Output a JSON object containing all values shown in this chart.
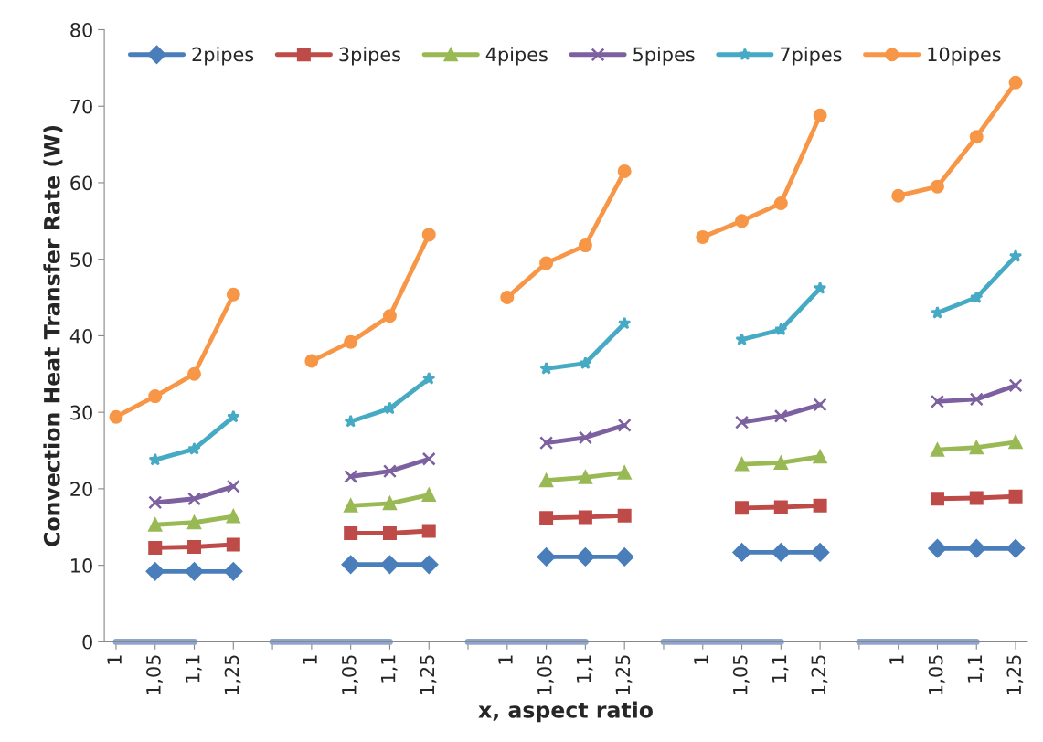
{
  "chart_data": {
    "type": "line",
    "xlabel": "x, aspect ratio",
    "ylabel": "Convection Heat Transfer Rate (W)",
    "categories": [
      "1",
      "1,05",
      "1,1",
      "1,25",
      null,
      "1",
      "1,05",
      "1,1",
      "1,25",
      null,
      "1",
      "1,05",
      "1,1",
      "1,25",
      null,
      "1",
      "1,05",
      "1,1",
      "1,25",
      null,
      "1",
      "1,05",
      "1,1",
      "1,25"
    ],
    "ylim": [
      0,
      80
    ],
    "yticks": [
      0,
      10,
      20,
      30,
      40,
      50,
      60,
      70,
      80
    ],
    "grid": false,
    "legend": "top",
    "line_style": "solid",
    "series": [
      {
        "name": "2pipes",
        "color": "#4a7ebb",
        "marker": "diamond",
        "values": [
          null,
          9.2,
          9.2,
          9.2,
          null,
          null,
          10.1,
          10.1,
          10.1,
          null,
          null,
          11.1,
          11.1,
          11.1,
          null,
          null,
          11.7,
          11.7,
          11.7,
          null,
          null,
          12.2,
          12.2,
          12.2
        ]
      },
      {
        "name": "3pipes",
        "color": "#be4b48",
        "marker": "square",
        "values": [
          null,
          12.3,
          12.4,
          12.7,
          null,
          null,
          14.2,
          14.2,
          14.5,
          null,
          null,
          16.2,
          16.3,
          16.5,
          null,
          null,
          17.5,
          17.6,
          17.8,
          null,
          null,
          18.7,
          18.8,
          19.0
        ]
      },
      {
        "name": "4pipes",
        "color": "#98b954",
        "marker": "triangle",
        "values": [
          null,
          15.3,
          15.6,
          16.4,
          null,
          null,
          17.8,
          18.1,
          19.2,
          null,
          null,
          21.1,
          21.5,
          22.1,
          null,
          null,
          23.2,
          23.4,
          24.2,
          null,
          null,
          25.1,
          25.4,
          26.1
        ]
      },
      {
        "name": "5pipes",
        "color": "#7d60a0",
        "marker": "cross",
        "values": [
          null,
          18.2,
          18.7,
          20.3,
          null,
          null,
          21.6,
          22.3,
          23.9,
          null,
          null,
          26.0,
          26.7,
          28.3,
          null,
          null,
          28.7,
          29.5,
          31.0,
          null,
          null,
          31.4,
          31.7,
          33.5
        ]
      },
      {
        "name": "7pipes",
        "color": "#46aac5",
        "marker": "star",
        "values": [
          null,
          23.8,
          25.2,
          29.4,
          null,
          null,
          28.8,
          30.5,
          34.4,
          null,
          null,
          35.7,
          36.4,
          41.6,
          null,
          null,
          39.5,
          40.8,
          46.2,
          null,
          null,
          43.0,
          45.0,
          50.4
        ]
      },
      {
        "name": "10pipes",
        "color": "#f79646",
        "marker": "circle",
        "values": [
          29.4,
          32.1,
          35.0,
          45.4,
          null,
          36.7,
          39.2,
          42.6,
          53.2,
          null,
          45.0,
          49.5,
          51.8,
          61.5,
          null,
          52.9,
          55.0,
          57.3,
          68.8,
          null,
          58.3,
          59.5,
          66.0,
          73.1
        ]
      },
      {
        "color": "#8ea5cf",
        "marker": "none",
        "values": [
          0,
          0,
          0,
          null,
          0,
          0,
          0,
          0,
          null,
          0,
          0,
          0,
          0,
          null,
          0,
          0,
          0,
          0,
          null,
          0,
          0,
          0,
          0,
          null
        ]
      }
    ]
  }
}
